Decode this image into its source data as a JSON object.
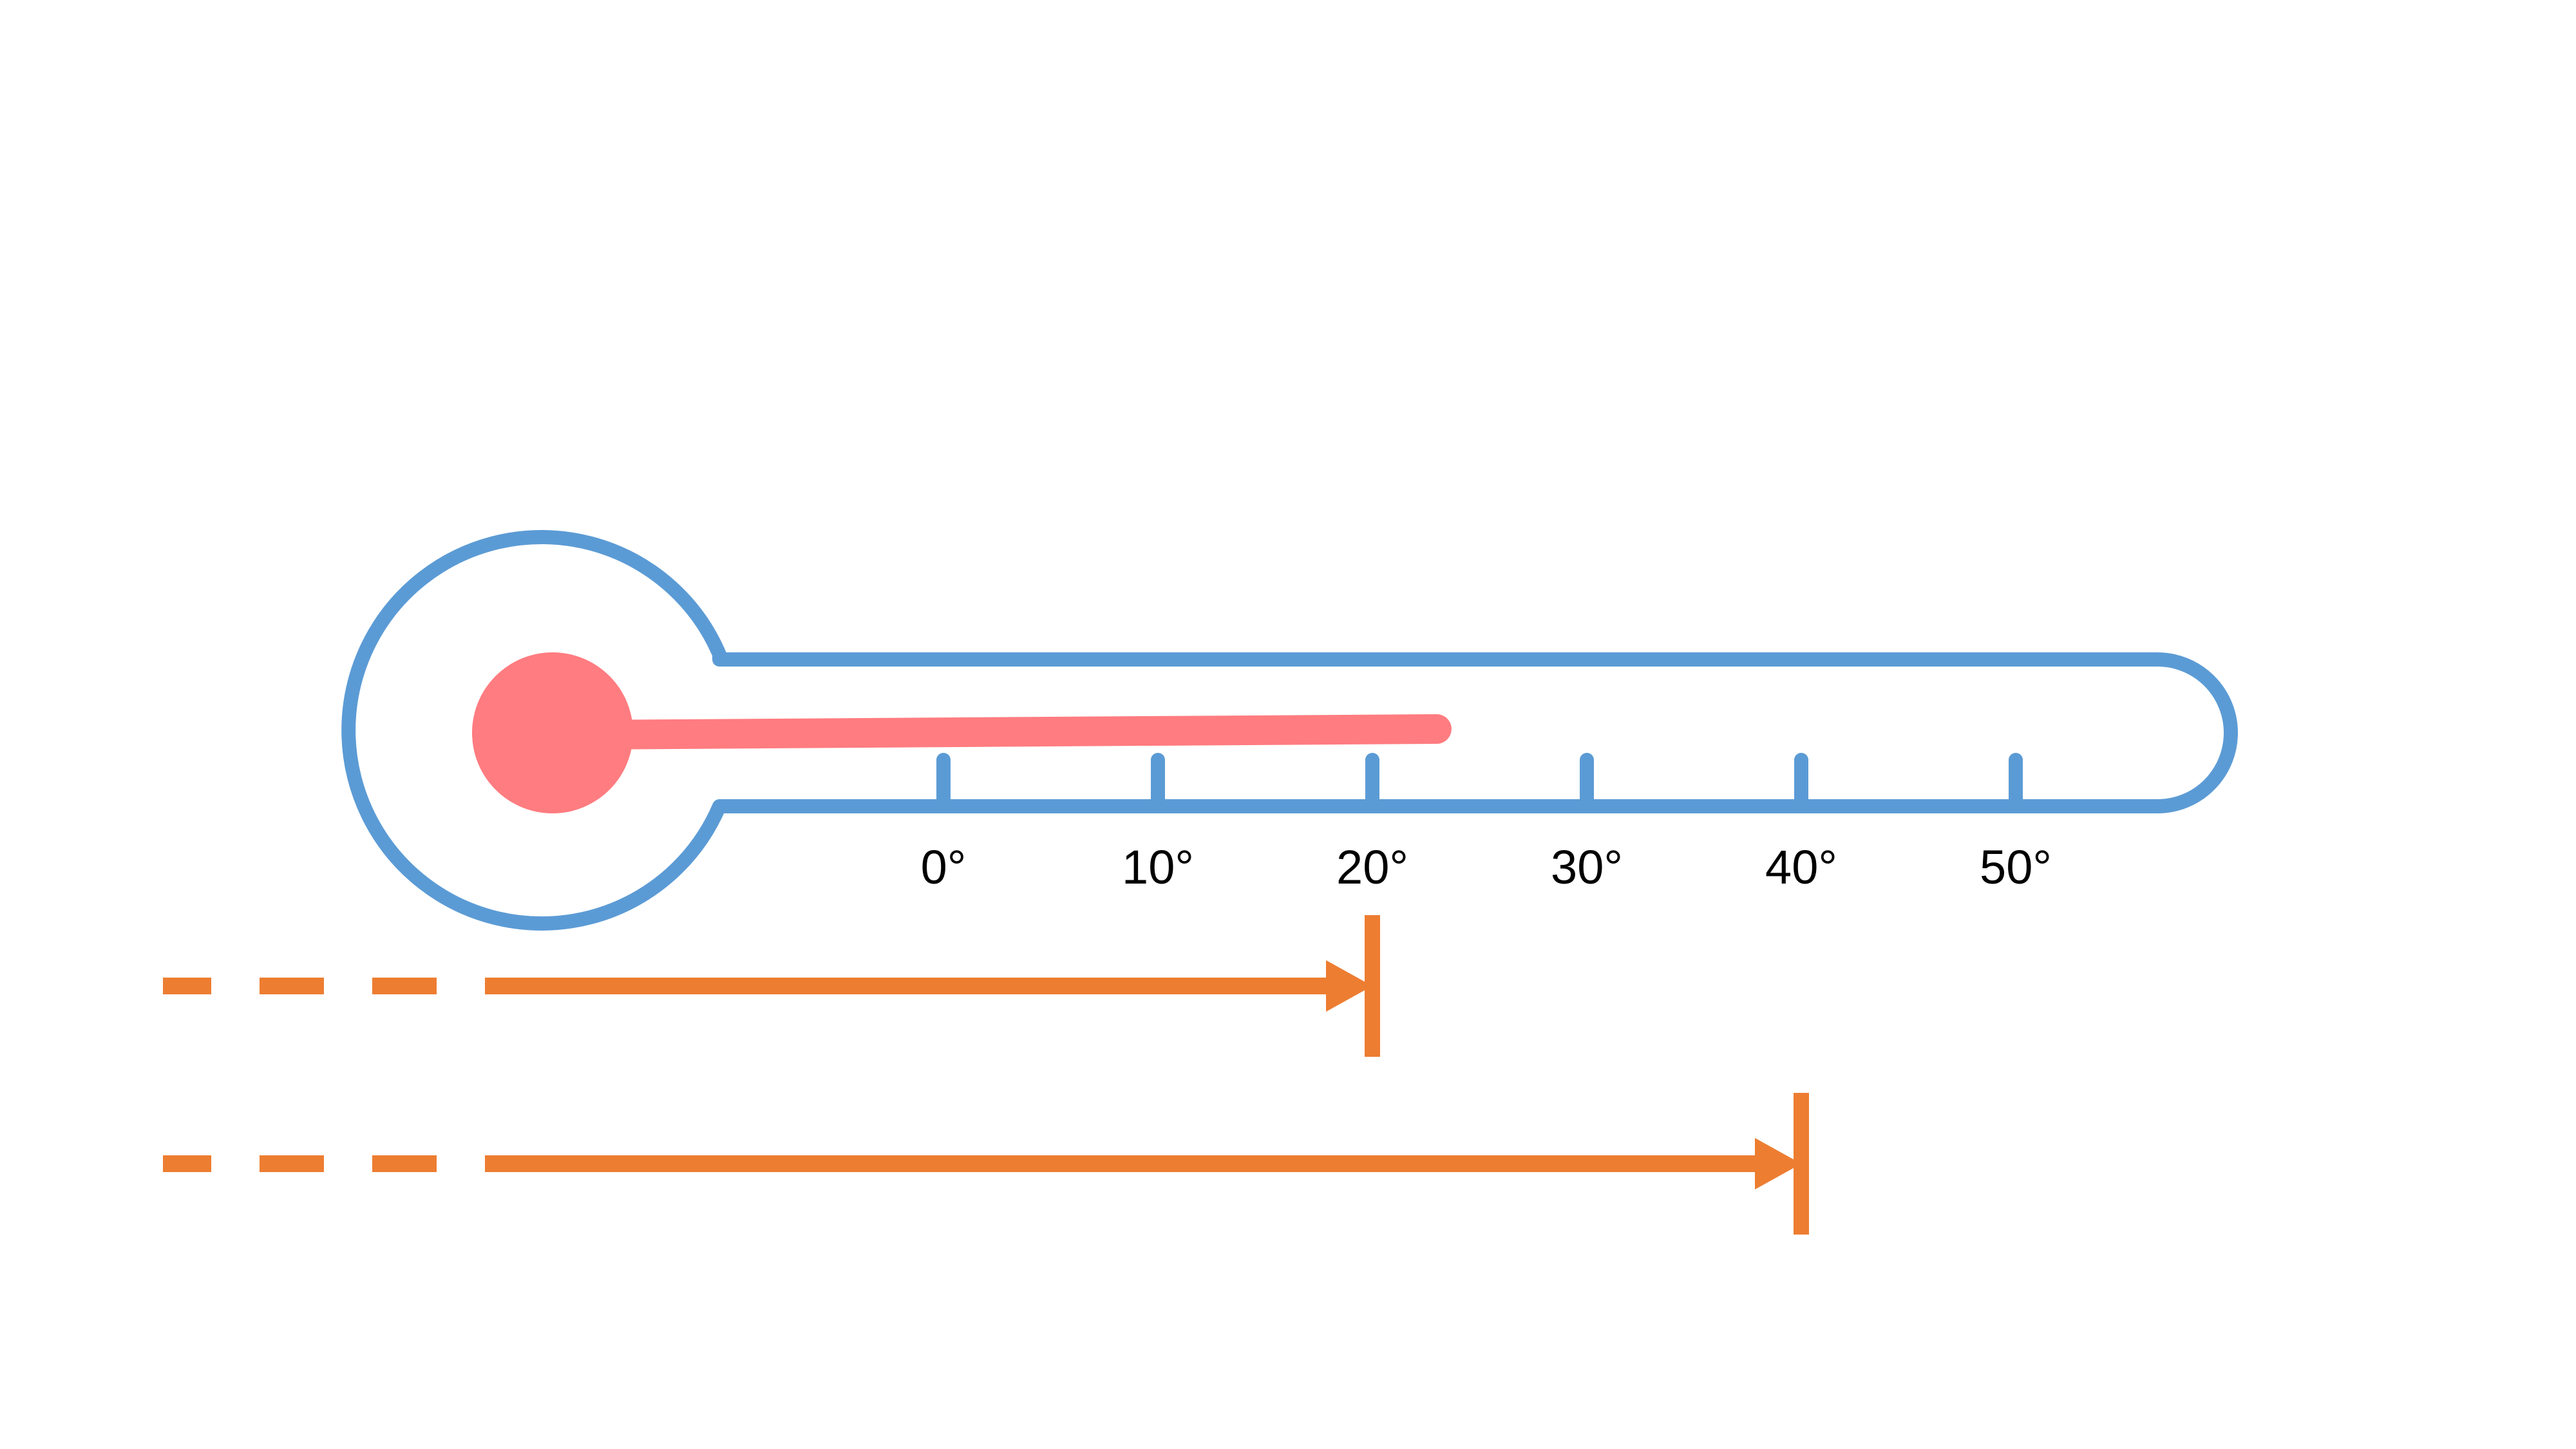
{
  "colors": {
    "outline": "#5b9bd5",
    "mercury": "#ff7c80",
    "arrow": "#ed7d31",
    "text": "#000000"
  },
  "scale": {
    "labels": [
      "0°",
      "10°",
      "20°",
      "30°",
      "40°",
      "50°"
    ],
    "values": [
      0,
      10,
      20,
      30,
      40,
      50
    ]
  },
  "mercury_level": 23,
  "arrows": [
    {
      "target": 20
    },
    {
      "target": 40
    }
  ]
}
